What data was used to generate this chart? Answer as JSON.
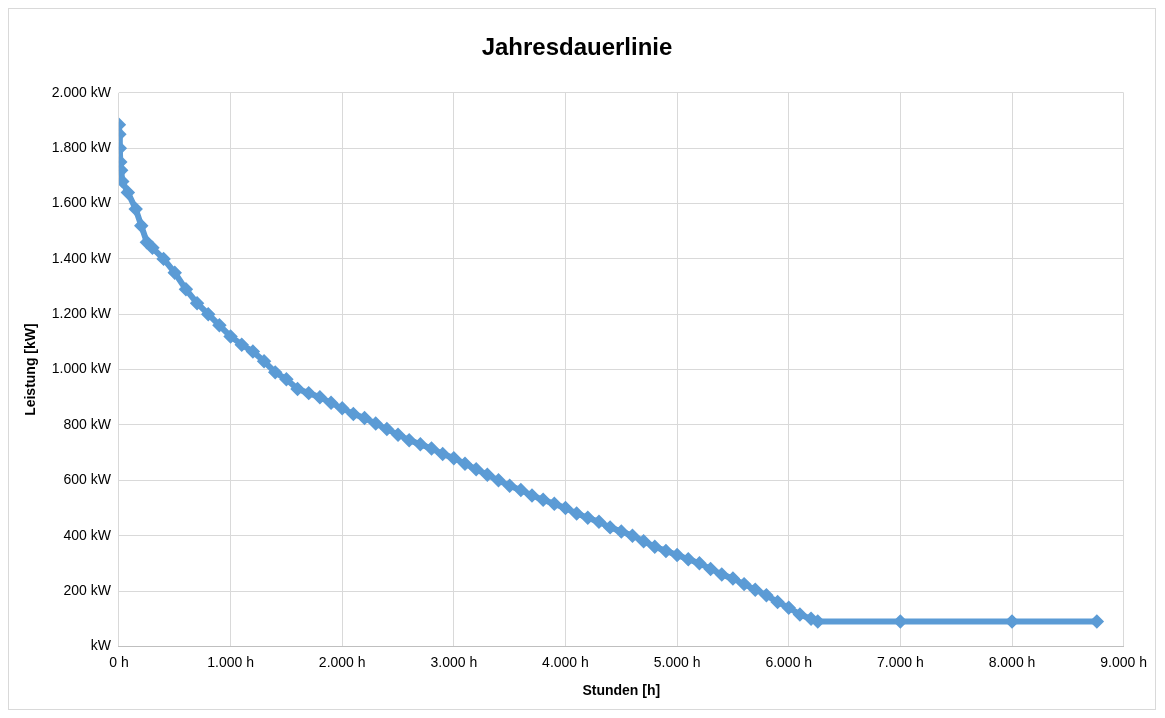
{
  "chart_data": {
    "type": "line",
    "title": "Jahresdauerlinie",
    "xlabel": "Stunden [h]",
    "ylabel": "Leistung [kW]",
    "x": [
      0,
      4,
      8,
      12,
      20,
      30,
      80,
      150,
      200,
      250,
      300,
      400,
      500,
      600,
      700,
      800,
      900,
      1000,
      1100,
      1200,
      1300,
      1400,
      1500,
      1600,
      1700,
      1800,
      1900,
      2000,
      2100,
      2200,
      2300,
      2400,
      2500,
      2600,
      2700,
      2800,
      2900,
      3000,
      3100,
      3200,
      3300,
      3400,
      3500,
      3600,
      3700,
      3800,
      3900,
      4000,
      4100,
      4200,
      4300,
      4400,
      4500,
      4600,
      4700,
      4800,
      4900,
      5000,
      5100,
      5200,
      5300,
      5400,
      5500,
      5600,
      5700,
      5800,
      5900,
      6000,
      6100,
      6200,
      6260,
      7000,
      8000,
      8760
    ],
    "series": [
      {
        "color": "#5b9bd5",
        "values": [
          1885,
          1850,
          1800,
          1750,
          1720,
          1680,
          1640,
          1580,
          1520,
          1460,
          1440,
          1400,
          1350,
          1290,
          1240,
          1200,
          1160,
          1120,
          1090,
          1065,
          1030,
          990,
          965,
          930,
          915,
          900,
          880,
          860,
          840,
          825,
          805,
          785,
          765,
          745,
          730,
          715,
          695,
          680,
          660,
          640,
          620,
          600,
          580,
          565,
          545,
          530,
          515,
          500,
          480,
          465,
          450,
          430,
          415,
          400,
          380,
          360,
          345,
          330,
          315,
          300,
          280,
          260,
          245,
          225,
          205,
          185,
          160,
          140,
          115,
          100,
          90,
          90,
          90,
          90
        ]
      }
    ],
    "xlim": [
      0,
      9000
    ],
    "xticks": [
      {
        "value": 0,
        "label": "0 h"
      },
      {
        "value": 1000,
        "label": "1.000 h"
      },
      {
        "value": 2000,
        "label": "2.000 h"
      },
      {
        "value": 3000,
        "label": "3.000 h"
      },
      {
        "value": 4000,
        "label": "4.000 h"
      },
      {
        "value": 5000,
        "label": "5.000 h"
      },
      {
        "value": 6000,
        "label": "6.000 h"
      },
      {
        "value": 7000,
        "label": "7.000 h"
      },
      {
        "value": 8000,
        "label": "8.000 h"
      },
      {
        "value": 9000,
        "label": "9.000 h"
      }
    ],
    "ylim": [
      0,
      2000
    ],
    "yticks": [
      {
        "value": 0,
        "label": "kW"
      },
      {
        "value": 200,
        "label": "200 kW"
      },
      {
        "value": 400,
        "label": "400 kW"
      },
      {
        "value": 600,
        "label": "600 kW"
      },
      {
        "value": 800,
        "label": "800 kW"
      },
      {
        "value": 1000,
        "label": "1.000 kW"
      },
      {
        "value": 1200,
        "label": "1.200 kW"
      },
      {
        "value": 1400,
        "label": "1.400 kW"
      },
      {
        "value": 1600,
        "label": "1.600 kW"
      },
      {
        "value": 1800,
        "label": "1.800 kW"
      },
      {
        "value": 2000,
        "label": "2.000 kW"
      }
    ],
    "grid": true,
    "marker": "diamond",
    "line_style": "solid",
    "legend": false
  }
}
